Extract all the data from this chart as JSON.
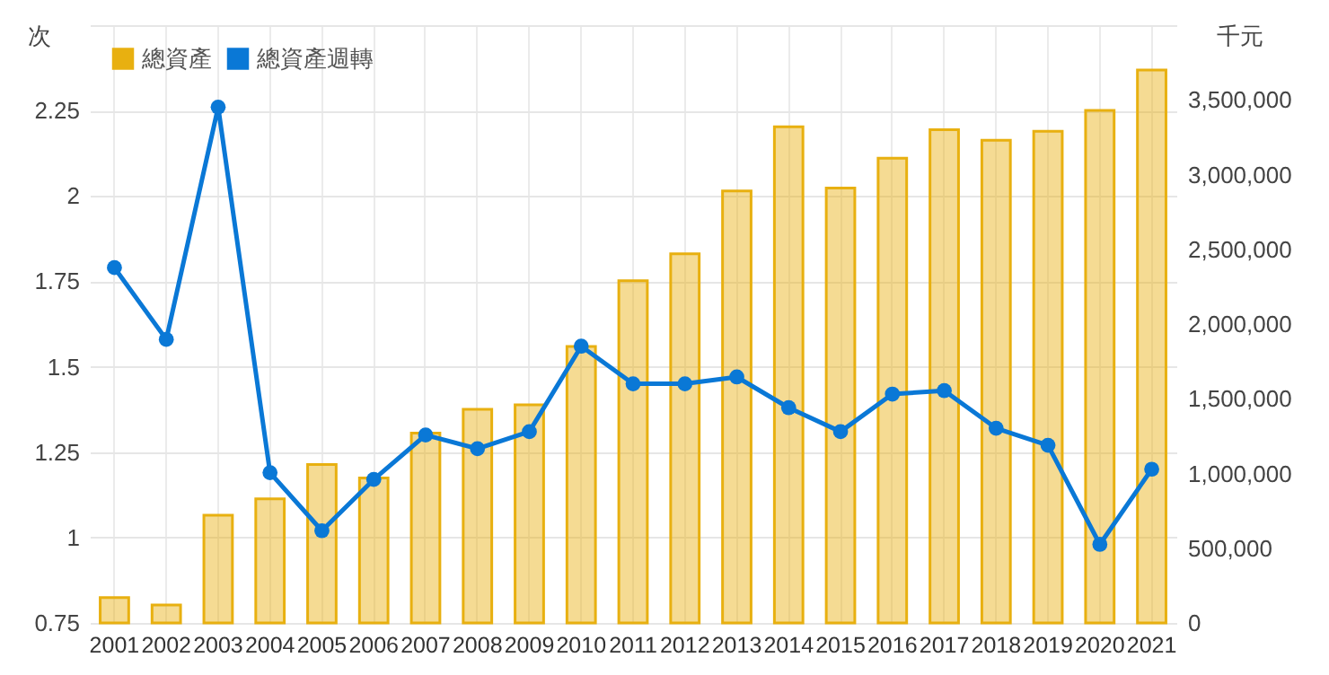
{
  "chart_data": {
    "type": "bar",
    "categories": [
      "2001",
      "2002",
      "2003",
      "2004",
      "2005",
      "2006",
      "2007",
      "2008",
      "2009",
      "2010",
      "2011",
      "2012",
      "2013",
      "2014",
      "2015",
      "2016",
      "2017",
      "2018",
      "2019",
      "2020",
      "2021"
    ],
    "series": [
      {
        "name": "總資產",
        "axis": "y2",
        "color": "#e8b010",
        "values": [
          170000,
          120000,
          720000,
          830000,
          1060000,
          970000,
          1270000,
          1430000,
          1460000,
          1850000,
          2290000,
          2470000,
          2890000,
          3320000,
          2910000,
          3110000,
          3300000,
          3230000,
          3290000,
          3430000,
          3700000
        ]
      },
      {
        "name": "總資產週轉",
        "type": "line",
        "color": "#0a78d6",
        "values": [
          1.79,
          1.58,
          2.26,
          1.19,
          1.02,
          1.17,
          1.3,
          1.26,
          1.31,
          1.56,
          1.45,
          1.45,
          1.47,
          1.38,
          1.31,
          1.42,
          1.43,
          1.32,
          1.27,
          0.98,
          1.2
        ]
      }
    ],
    "ylabel": "次",
    "y2label": "千元",
    "ylim": [
      0.75,
      2.5
    ],
    "yticks": [
      0.75,
      1,
      1.25,
      1.5,
      1.75,
      2,
      2.25,
      {
        "value": 2.5,
        "label": null
      }
    ],
    "y2lim": [
      0,
      4000000
    ],
    "y2ticks": [
      {
        "value": 0,
        "label": "0"
      },
      {
        "value": 500000,
        "label": "500,000"
      },
      {
        "value": 1000000,
        "label": "1,000,000"
      },
      {
        "value": 1500000,
        "label": "1,500,000"
      },
      {
        "value": 2000000,
        "label": "2,000,000"
      },
      {
        "value": 2500000,
        "label": "2,500,000"
      },
      {
        "value": 3000000,
        "label": "3,000,000"
      },
      {
        "value": 3500000,
        "label": "3,500,000"
      }
    ],
    "grid": true,
    "legend": "top left",
    "marker": "circle"
  }
}
